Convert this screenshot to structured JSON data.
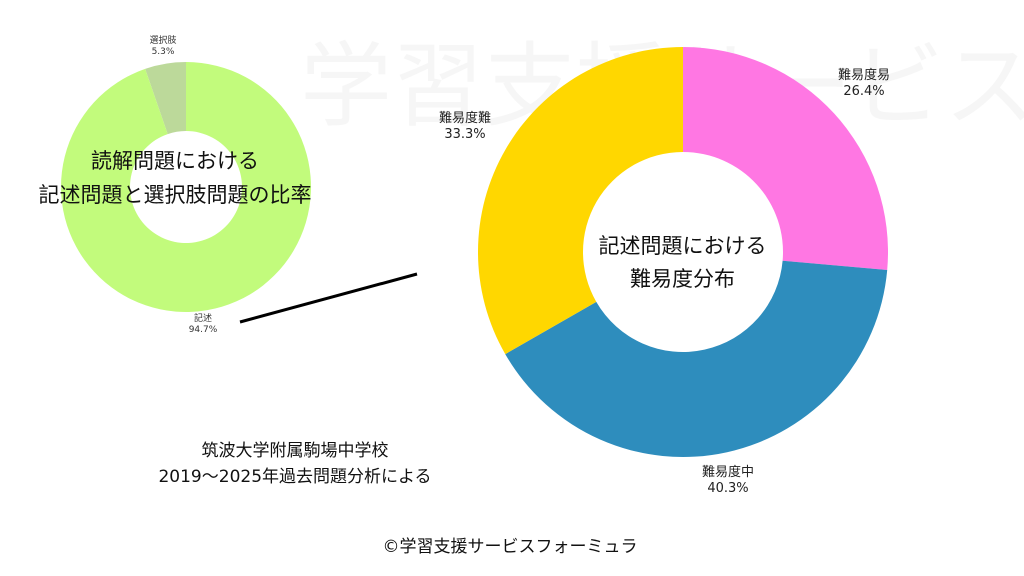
{
  "chart_data": [
    {
      "type": "pie",
      "variant": "donut",
      "title": "読解問題における 記述問題と選択肢問題の比率",
      "title_lines": [
        "読解問題における",
        "記述問題と選択肢問題の比率"
      ],
      "categories": [
        "選択肢",
        "記述"
      ],
      "values": [
        5.3,
        94.7
      ],
      "value_labels": [
        "5.3%",
        "94.7%"
      ],
      "colors": [
        "#bcd99a",
        "#c2fb7c"
      ]
    },
    {
      "type": "pie",
      "variant": "donut",
      "title": "記述問題における 難易度分布",
      "title_lines": [
        "記述問題における",
        "難易度分布"
      ],
      "categories": [
        "難易度易",
        "難易度中",
        "難易度難"
      ],
      "values": [
        26.4,
        40.3,
        33.3
      ],
      "value_labels": [
        "26.4%",
        "40.3%",
        "33.3%"
      ],
      "colors": [
        "#ff77e3",
        "#2e8dbd",
        "#ffd700"
      ]
    }
  ],
  "source": {
    "line1": "筑波大学附属駒場中学校",
    "line2": "2019〜2025年過去問題分析による"
  },
  "watermark": "学習支援サービスフォーミュラ",
  "copyright": "©学習支援サービスフォーミュラ"
}
